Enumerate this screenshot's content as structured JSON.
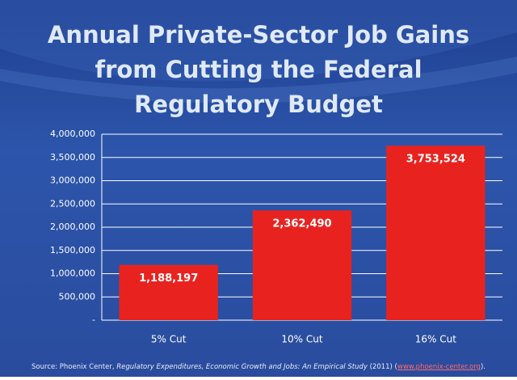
{
  "chart_data": {
    "type": "bar",
    "title": [
      "Annual Private-Sector Job Gains",
      "from Cutting the Federal",
      "Regulatory Budget"
    ],
    "categories": [
      "5% Cut",
      "10% Cut",
      "16% Cut"
    ],
    "values": [
      1188197,
      2362490,
      3753524
    ],
    "value_labels": [
      "1,188,197",
      "2,362,490",
      "3,753,524"
    ],
    "color": "#e8231f",
    "ylim": [
      0,
      4000000
    ],
    "yticks": [
      {
        "value": 0,
        "label": "-"
      },
      {
        "value": 500000,
        "label": "500,000"
      },
      {
        "value": 1000000,
        "label": "1,000,000"
      },
      {
        "value": 1500000,
        "label": "1,500,000"
      },
      {
        "value": 2000000,
        "label": "2,000,000"
      },
      {
        "value": 2500000,
        "label": "2,500,000"
      },
      {
        "value": 3000000,
        "label": "3,000,000"
      },
      {
        "value": 3500000,
        "label": "3,500,000"
      },
      {
        "value": 4000000,
        "label": "4,000,000"
      }
    ],
    "grid": true,
    "source": {
      "prefix": "Source:  Phoenix Center,",
      "study": "Regulatory Expenditures, Economic Growth and Jobs: An Empirical Study",
      "year": "(2011) (",
      "link": "www.phoenix-center.org",
      "suffix": ")."
    }
  }
}
